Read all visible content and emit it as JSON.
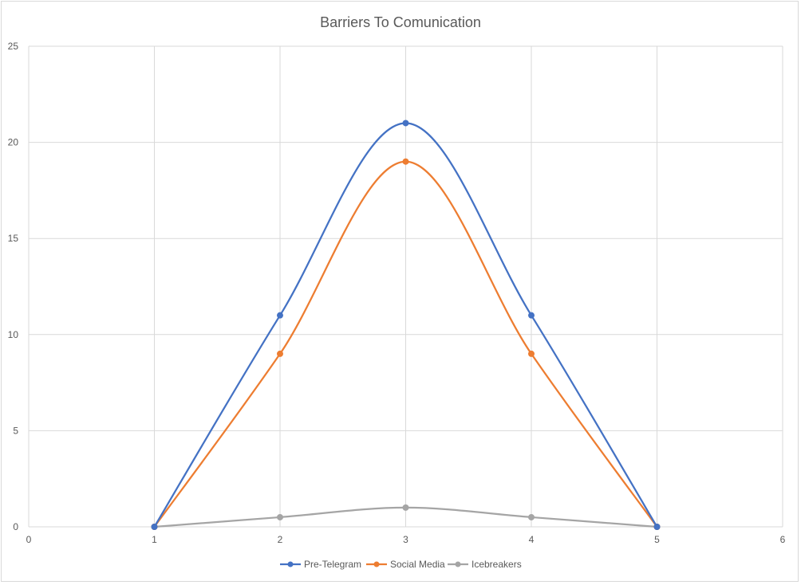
{
  "chart_data": {
    "type": "scatter",
    "subtype": "smooth-lines-with-markers",
    "title": "Barriers To Comunication",
    "xlabel": "",
    "ylabel": "",
    "xlim": [
      0,
      6
    ],
    "ylim": [
      0,
      25
    ],
    "x_ticks": [
      0,
      1,
      2,
      3,
      4,
      5,
      6
    ],
    "y_ticks": [
      0,
      5,
      10,
      15,
      20,
      25
    ],
    "grid": true,
    "legend_position": "bottom",
    "series": [
      {
        "name": "Pre-Telegram",
        "color": "#4472c4",
        "x": [
          1,
          2,
          3,
          4,
          5
        ],
        "y": [
          0,
          11,
          21,
          11,
          0
        ]
      },
      {
        "name": "Social Media",
        "color": "#ed7d31",
        "x": [
          1,
          2,
          3,
          4,
          5
        ],
        "y": [
          0,
          9,
          19,
          9,
          0
        ]
      },
      {
        "name": "Icebreakers",
        "color": "#a5a5a5",
        "x": [
          1,
          2,
          3,
          4,
          5
        ],
        "y": [
          0,
          0.5,
          1,
          0.5,
          0
        ]
      }
    ]
  }
}
